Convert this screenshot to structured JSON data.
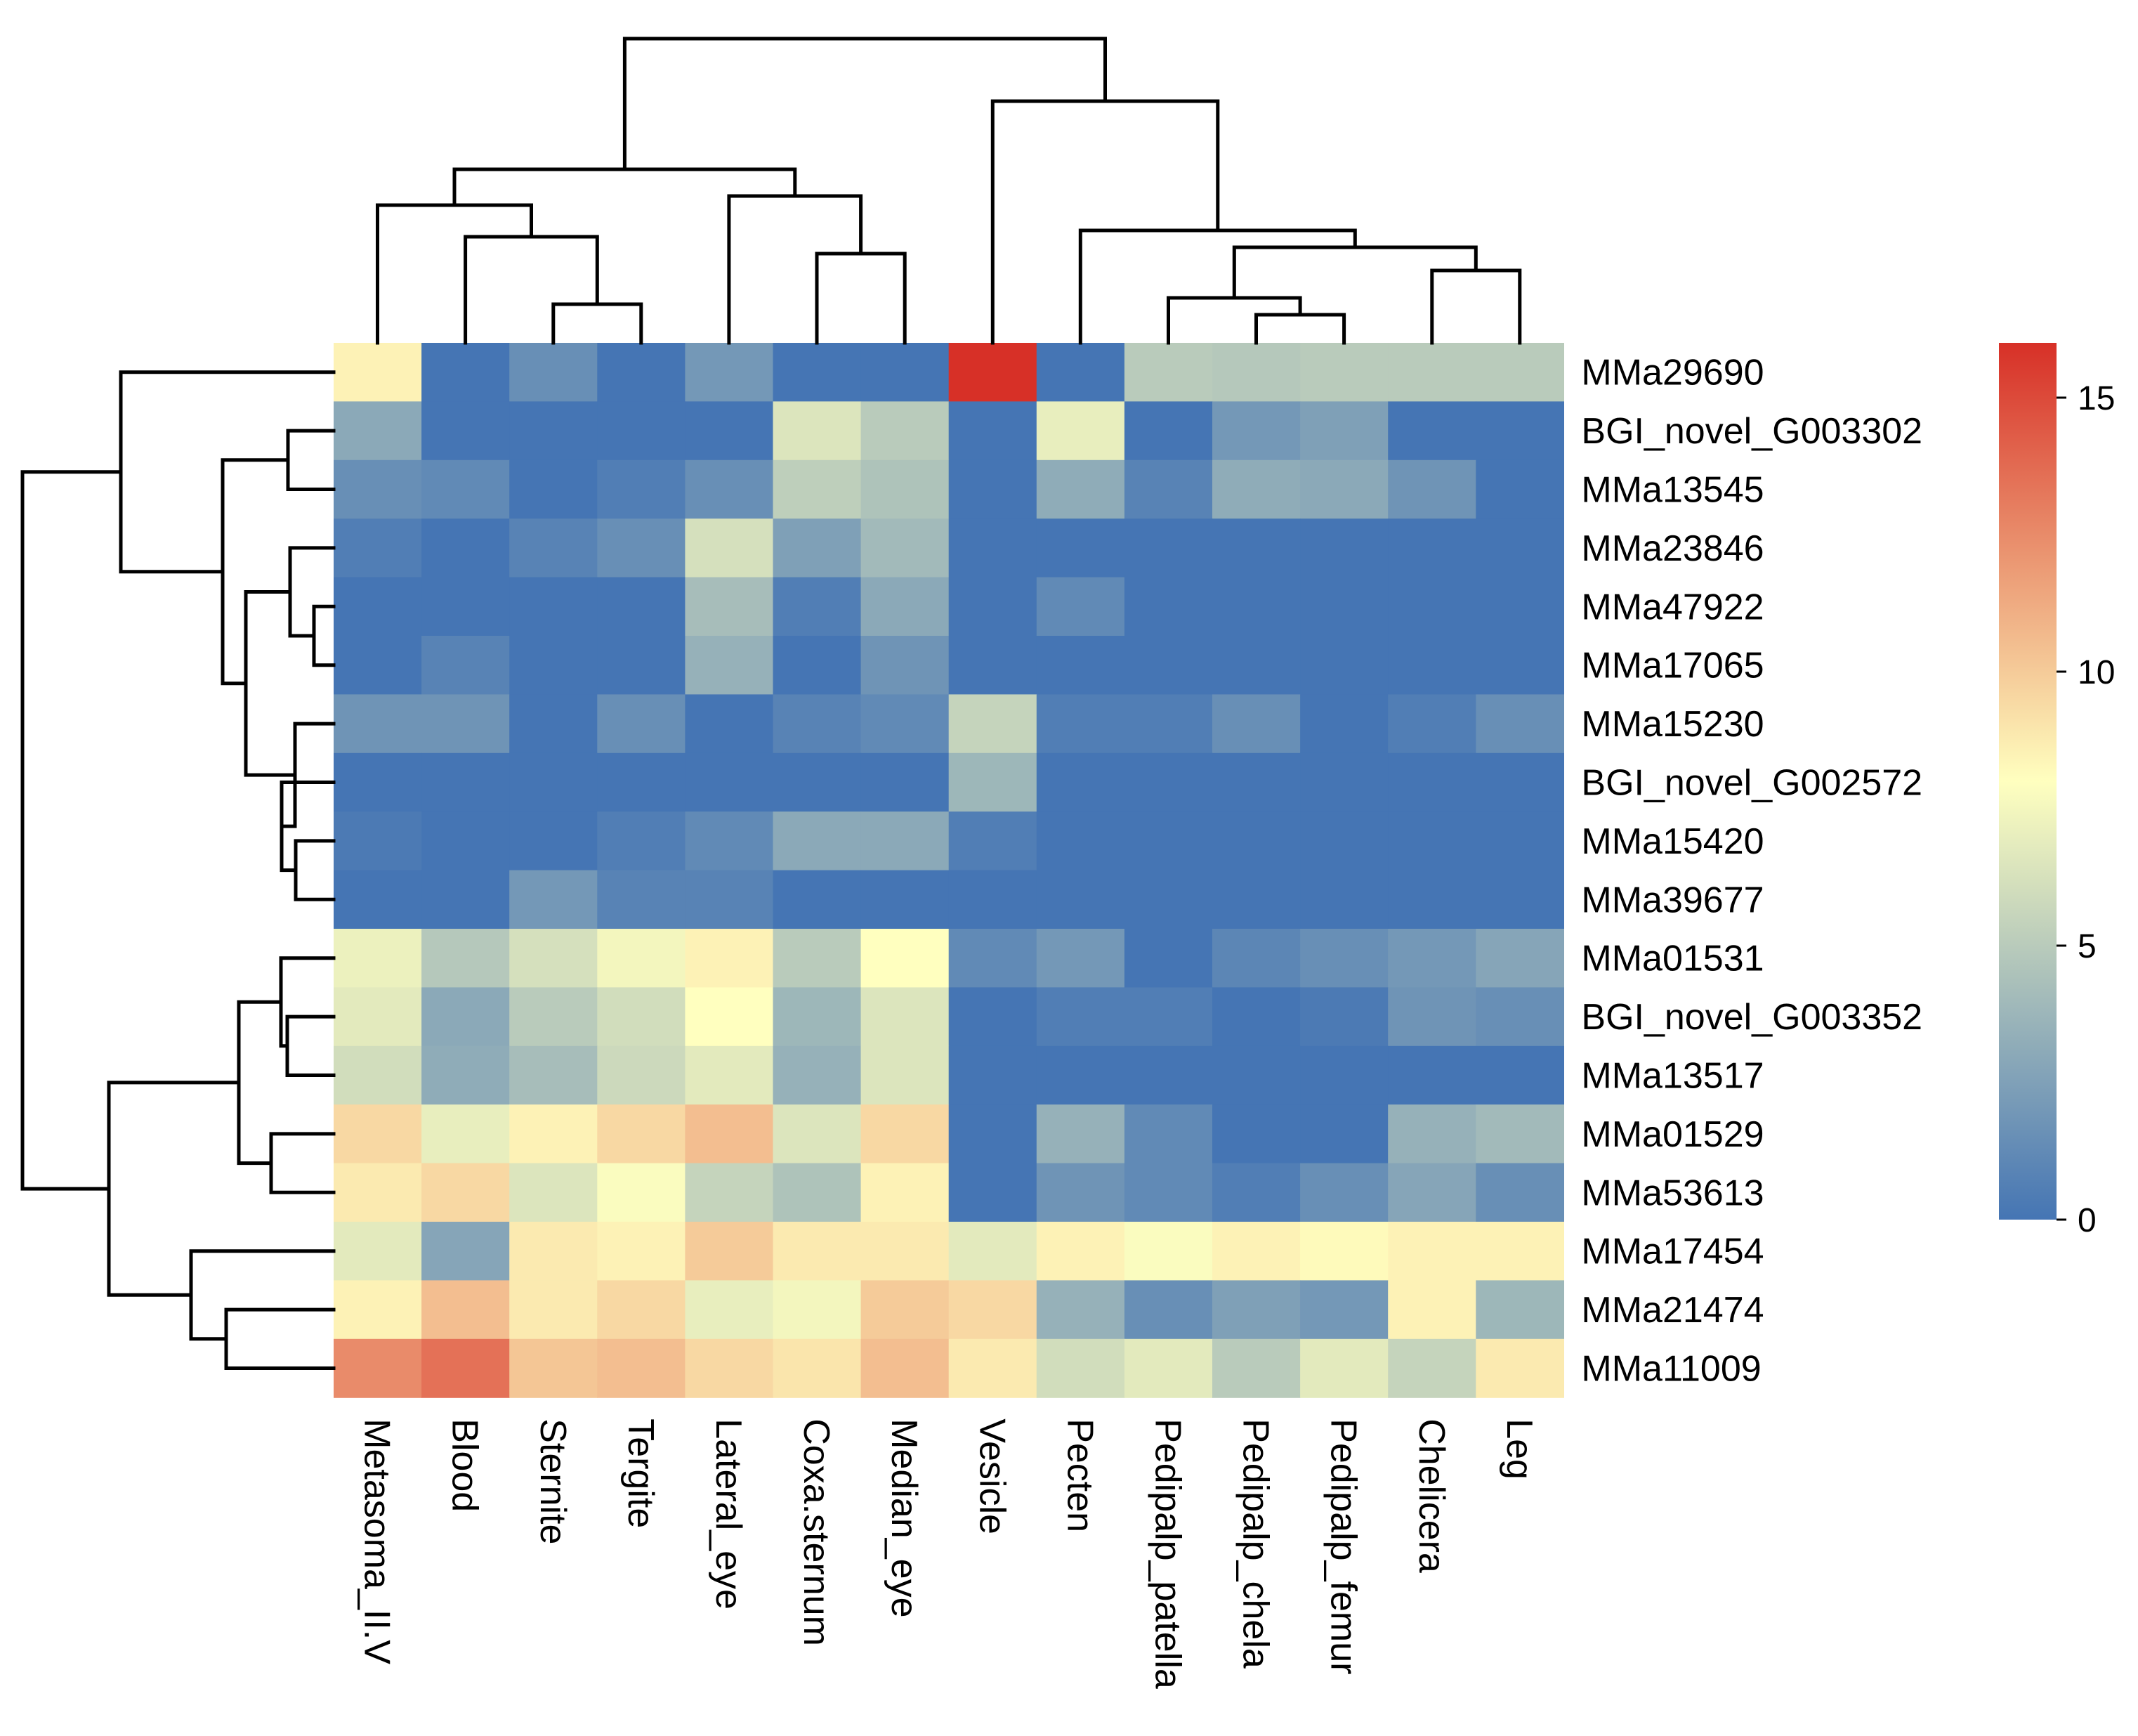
{
  "chart_data": {
    "type": "heatmap",
    "title": "",
    "columns": [
      "Metasoma_II.V",
      "Blood",
      "Sternite",
      "Tergite",
      "Lateral_eye",
      "Coxa.sternum",
      "Median_eye",
      "Vesicle",
      "Pecten",
      "Pedipalp_patella",
      "Pedipalp_chela",
      "Pedipalp_femur",
      "Chelicera",
      "Leg"
    ],
    "rows": [
      "MMa29690",
      "BGI_novel_G003302",
      "MMa13545",
      "MMa23846",
      "MMa47922",
      "MMa17065",
      "MMa15230",
      "BGI_novel_G002572",
      "MMa15420",
      "MMa39677",
      "MMa01531",
      "BGI_novel_G003352",
      "MMa13517",
      "MMa01529",
      "MMa53613",
      "MMa17454",
      "MMa21474",
      "MMa11009"
    ],
    "values": [
      [
        8.5,
        0,
        1.5,
        0,
        2,
        0,
        0,
        16,
        0,
        5,
        4.8,
        5,
        5,
        5
      ],
      [
        3,
        0,
        0,
        0,
        0,
        6.5,
        5,
        0,
        7,
        0,
        2,
        2.5,
        0,
        0
      ],
      [
        1.5,
        1.2,
        0,
        0.5,
        1.5,
        5.2,
        4.5,
        0,
        3.2,
        0.8,
        3.2,
        3,
        1.8,
        0
      ],
      [
        0.5,
        0,
        0.8,
        1.5,
        6.2,
        2.5,
        4,
        0,
        0,
        0,
        0,
        0,
        0,
        0
      ],
      [
        0,
        0,
        0,
        0,
        4.2,
        0.5,
        3,
        0,
        1.2,
        0,
        0,
        0,
        0,
        0
      ],
      [
        0,
        0.8,
        0,
        0,
        3.5,
        0,
        1.8,
        0,
        0,
        0,
        0,
        0,
        0,
        0
      ],
      [
        1.8,
        1.8,
        0,
        1.5,
        0,
        0.8,
        1.2,
        5.5,
        0.5,
        0.5,
        1.5,
        0,
        0.5,
        1.5
      ],
      [
        0,
        0,
        0,
        0,
        0,
        0,
        0,
        3.8,
        0,
        0,
        0,
        0,
        0,
        0
      ],
      [
        0.3,
        0,
        0,
        0.5,
        1.2,
        3,
        3,
        0.5,
        0,
        0,
        0,
        0,
        0,
        0
      ],
      [
        0,
        0,
        2,
        0.8,
        0.8,
        0,
        0,
        0,
        0,
        0,
        0,
        0,
        0,
        0
      ],
      [
        7.2,
        4.8,
        6.2,
        7.5,
        8.5,
        5,
        8,
        1.2,
        2,
        0,
        1,
        1.5,
        2,
        2.8
      ],
      [
        6.8,
        3,
        5,
        6,
        8,
        3.8,
        6.5,
        0,
        0.5,
        0.5,
        0,
        0.3,
        1.8,
        1.5
      ],
      [
        6,
        3.2,
        4.2,
        5.8,
        6.8,
        3.5,
        6.5,
        0,
        0,
        0,
        0,
        0,
        0,
        0
      ],
      [
        9.5,
        7,
        8.5,
        9.5,
        10.5,
        6.5,
        9.5,
        0,
        3.5,
        1.2,
        0,
        0,
        3.5,
        4
      ],
      [
        8.8,
        9.5,
        6.5,
        7.8,
        5.5,
        4.5,
        8.5,
        0,
        1.8,
        1.2,
        0.5,
        1.5,
        2.8,
        1.5
      ],
      [
        6.8,
        2.8,
        8.8,
        8.5,
        10,
        8.8,
        8.8,
        6.8,
        8.5,
        7.8,
        8.5,
        8.2,
        8.5,
        8.5
      ],
      [
        8.5,
        10.5,
        8.8,
        9.5,
        7,
        7.5,
        10,
        9.5,
        3.5,
        1.5,
        2.5,
        2,
        8.5,
        3.8
      ],
      [
        12.5,
        13.5,
        10.2,
        10.5,
        9.5,
        9,
        10.5,
        8.8,
        6,
        6.8,
        5,
        6.8,
        5.5,
        8.8
      ]
    ],
    "color_scale": {
      "min": 0,
      "max": 16,
      "low_color": "#4575b4",
      "mid_color": "#ffffbf",
      "high_color": "#d73027",
      "ticks": [
        "0",
        "5",
        "10",
        "15"
      ]
    }
  }
}
